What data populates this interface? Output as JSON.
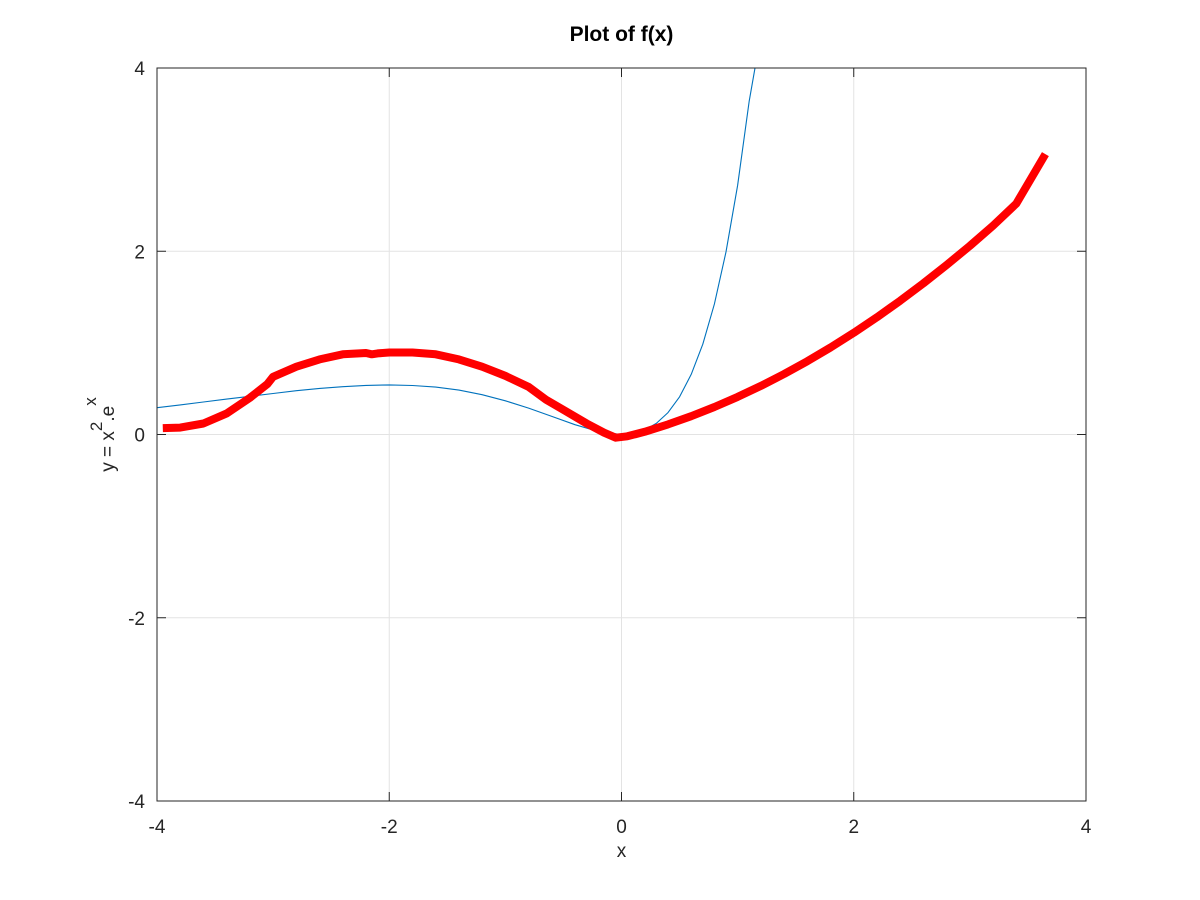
{
  "chart_data": {
    "type": "line",
    "title": "Plot of f(x)",
    "xlabel": "x",
    "ylabel": {
      "base": "y = x",
      "exponent1": "2",
      "middle": ".e",
      "exponent2": "x"
    },
    "xlim": [
      -4,
      4
    ],
    "ylim": [
      -4,
      4
    ],
    "xticks": [
      -4,
      -2,
      0,
      2,
      4
    ],
    "yticks": [
      -4,
      -2,
      0,
      2,
      4
    ],
    "xtick_labels": [
      "-4",
      "-2",
      "0",
      "2",
      "4"
    ],
    "ytick_labels": [
      "-4",
      "-2",
      "0",
      "2",
      "4"
    ],
    "grid": true,
    "series": [
      {
        "color": "#0072bd",
        "style": "thin",
        "x": [
          -4.0,
          -3.8,
          -3.6,
          -3.4,
          -3.2,
          -3.0,
          -2.8,
          -2.6,
          -2.4,
          -2.2,
          -2.0,
          -1.8,
          -1.6,
          -1.4,
          -1.2,
          -1.0,
          -0.8,
          -0.6,
          -0.4,
          -0.2,
          0.0,
          0.1,
          0.2,
          0.3,
          0.4,
          0.5,
          0.6,
          0.7,
          0.8,
          0.9,
          1.0,
          1.1,
          1.15
        ],
        "y": [
          0.293,
          0.323,
          0.355,
          0.386,
          0.417,
          0.448,
          0.478,
          0.503,
          0.522,
          0.536,
          0.541,
          0.535,
          0.517,
          0.485,
          0.434,
          0.368,
          0.288,
          0.198,
          0.107,
          0.033,
          0.0,
          0.011,
          0.049,
          0.121,
          0.239,
          0.412,
          0.656,
          0.986,
          1.424,
          1.993,
          2.718,
          3.639,
          4.0
        ]
      },
      {
        "color": "#ff0000",
        "style": "thick",
        "x": [
          -3.95,
          -3.8,
          -3.6,
          -3.4,
          -3.2,
          -3.05,
          -3.0,
          -2.8,
          -2.6,
          -2.4,
          -2.2,
          -2.15,
          -2.1,
          -2.0,
          -1.8,
          -1.6,
          -1.4,
          -1.2,
          -1.0,
          -0.8,
          -0.65,
          -0.5,
          -0.3,
          -0.15,
          -0.05,
          0.05,
          0.2,
          0.4,
          0.6,
          0.8,
          1.0,
          1.2,
          1.4,
          1.6,
          1.8,
          2.0,
          2.2,
          2.4,
          2.6,
          2.8,
          3.0,
          3.2,
          3.4,
          3.65
        ],
        "y": [
          0.07,
          0.075,
          0.12,
          0.23,
          0.4,
          0.55,
          0.63,
          0.74,
          0.82,
          0.875,
          0.89,
          0.875,
          0.885,
          0.895,
          0.895,
          0.875,
          0.82,
          0.74,
          0.64,
          0.52,
          0.38,
          0.27,
          0.12,
          0.02,
          -0.035,
          -0.02,
          0.03,
          0.11,
          0.2,
          0.3,
          0.41,
          0.53,
          0.66,
          0.8,
          0.95,
          1.11,
          1.28,
          1.46,
          1.65,
          1.85,
          2.06,
          2.28,
          2.52,
          3.06
        ]
      }
    ]
  }
}
